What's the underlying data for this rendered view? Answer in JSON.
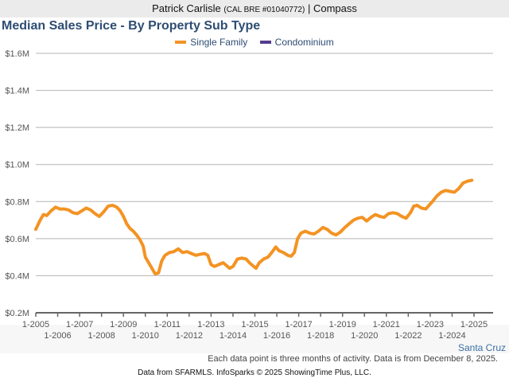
{
  "header": {
    "name": "Patrick Carlisle",
    "license": "(CAL BRE #01040772)",
    "separator": "|",
    "company": "Compass"
  },
  "chart_data": {
    "type": "line",
    "title": "Median Sales Price - By Property Sub Type",
    "xlabel": "",
    "ylabel": "",
    "ylim": [
      0.2,
      1.6
    ],
    "yticks": [
      "$0.2M",
      "$0.4M",
      "$0.6M",
      "$0.8M",
      "$1.0M",
      "$1.2M",
      "$1.4M",
      "$1.6M"
    ],
    "ytick_values": [
      0.2,
      0.4,
      0.6,
      0.8,
      1.0,
      1.2,
      1.4,
      1.6
    ],
    "xlim": [
      2005.0,
      2025.9
    ],
    "xticks_upper": [
      "1-2005",
      "1-2007",
      "1-2009",
      "1-2011",
      "1-2013",
      "1-2015",
      "1-2017",
      "1-2019",
      "1-2021",
      "1-2023",
      "1-2025"
    ],
    "xticks_lower": [
      "1-2006",
      "1-2008",
      "1-2010",
      "1-2012",
      "1-2014",
      "1-2016",
      "1-2018",
      "1-2020",
      "1-2022",
      "1-2024"
    ],
    "grid": true,
    "legend_position": "top-center",
    "series": [
      {
        "name": "Single Family",
        "color": "#f39323",
        "points": [
          [
            2005.0,
            0.65
          ],
          [
            2005.2,
            0.7
          ],
          [
            2005.35,
            0.73
          ],
          [
            2005.5,
            0.725
          ],
          [
            2005.7,
            0.75
          ],
          [
            2005.9,
            0.77
          ],
          [
            2006.1,
            0.76
          ],
          [
            2006.3,
            0.76
          ],
          [
            2006.5,
            0.755
          ],
          [
            2006.7,
            0.74
          ],
          [
            2006.9,
            0.735
          ],
          [
            2007.1,
            0.75
          ],
          [
            2007.3,
            0.765
          ],
          [
            2007.5,
            0.755
          ],
          [
            2007.7,
            0.735
          ],
          [
            2007.9,
            0.72
          ],
          [
            2008.1,
            0.745
          ],
          [
            2008.3,
            0.775
          ],
          [
            2008.5,
            0.78
          ],
          [
            2008.7,
            0.77
          ],
          [
            2008.85,
            0.75
          ],
          [
            2009.0,
            0.72
          ],
          [
            2009.15,
            0.68
          ],
          [
            2009.3,
            0.655
          ],
          [
            2009.45,
            0.64
          ],
          [
            2009.6,
            0.62
          ],
          [
            2009.75,
            0.595
          ],
          [
            2009.9,
            0.56
          ],
          [
            2010.0,
            0.5
          ],
          [
            2010.15,
            0.47
          ],
          [
            2010.3,
            0.44
          ],
          [
            2010.45,
            0.41
          ],
          [
            2010.6,
            0.415
          ],
          [
            2010.75,
            0.48
          ],
          [
            2010.9,
            0.51
          ],
          [
            2011.1,
            0.525
          ],
          [
            2011.3,
            0.53
          ],
          [
            2011.5,
            0.545
          ],
          [
            2011.7,
            0.525
          ],
          [
            2011.9,
            0.53
          ],
          [
            2012.1,
            0.52
          ],
          [
            2012.3,
            0.51
          ],
          [
            2012.5,
            0.515
          ],
          [
            2012.7,
            0.52
          ],
          [
            2012.85,
            0.51
          ],
          [
            2013.0,
            0.46
          ],
          [
            2013.15,
            0.45
          ],
          [
            2013.35,
            0.46
          ],
          [
            2013.55,
            0.47
          ],
          [
            2013.7,
            0.455
          ],
          [
            2013.85,
            0.44
          ],
          [
            2014.0,
            0.45
          ],
          [
            2014.2,
            0.49
          ],
          [
            2014.4,
            0.495
          ],
          [
            2014.6,
            0.49
          ],
          [
            2014.75,
            0.47
          ],
          [
            2014.9,
            0.455
          ],
          [
            2015.05,
            0.44
          ],
          [
            2015.2,
            0.47
          ],
          [
            2015.4,
            0.49
          ],
          [
            2015.6,
            0.5
          ],
          [
            2015.8,
            0.53
          ],
          [
            2015.95,
            0.555
          ],
          [
            2016.1,
            0.535
          ],
          [
            2016.3,
            0.525
          ],
          [
            2016.5,
            0.51
          ],
          [
            2016.65,
            0.505
          ],
          [
            2016.8,
            0.525
          ],
          [
            2016.95,
            0.6
          ],
          [
            2017.1,
            0.63
          ],
          [
            2017.3,
            0.64
          ],
          [
            2017.5,
            0.63
          ],
          [
            2017.7,
            0.625
          ],
          [
            2017.9,
            0.64
          ],
          [
            2018.1,
            0.66
          ],
          [
            2018.3,
            0.65
          ],
          [
            2018.5,
            0.63
          ],
          [
            2018.7,
            0.62
          ],
          [
            2018.9,
            0.635
          ],
          [
            2019.1,
            0.66
          ],
          [
            2019.3,
            0.68
          ],
          [
            2019.5,
            0.7
          ],
          [
            2019.7,
            0.71
          ],
          [
            2019.9,
            0.715
          ],
          [
            2020.1,
            0.695
          ],
          [
            2020.3,
            0.715
          ],
          [
            2020.5,
            0.73
          ],
          [
            2020.7,
            0.72
          ],
          [
            2020.9,
            0.715
          ],
          [
            2021.1,
            0.735
          ],
          [
            2021.3,
            0.74
          ],
          [
            2021.5,
            0.735
          ],
          [
            2021.7,
            0.72
          ],
          [
            2021.9,
            0.71
          ],
          [
            2022.1,
            0.74
          ],
          [
            2022.25,
            0.775
          ],
          [
            2022.4,
            0.78
          ],
          [
            2022.6,
            0.765
          ],
          [
            2022.8,
            0.76
          ],
          [
            2022.95,
            0.78
          ],
          [
            2023.1,
            0.8
          ],
          [
            2023.3,
            0.83
          ],
          [
            2023.5,
            0.85
          ],
          [
            2023.7,
            0.86
          ],
          [
            2023.9,
            0.855
          ],
          [
            2024.1,
            0.85
          ],
          [
            2024.3,
            0.87
          ],
          [
            2024.5,
            0.9
          ],
          [
            2024.7,
            0.91
          ],
          [
            2024.9,
            0.915
          ]
        ]
      },
      {
        "name": "Condominium",
        "color": "#533d8c",
        "points": []
      }
    ]
  },
  "footer": {
    "region": "Santa Cruz",
    "note": "Each data point is three months of activity. Data is from December 8, 2025.",
    "credit": "Data from SFARMLS. InfoSparks © 2025 ShowingTime Plus, LLC."
  }
}
